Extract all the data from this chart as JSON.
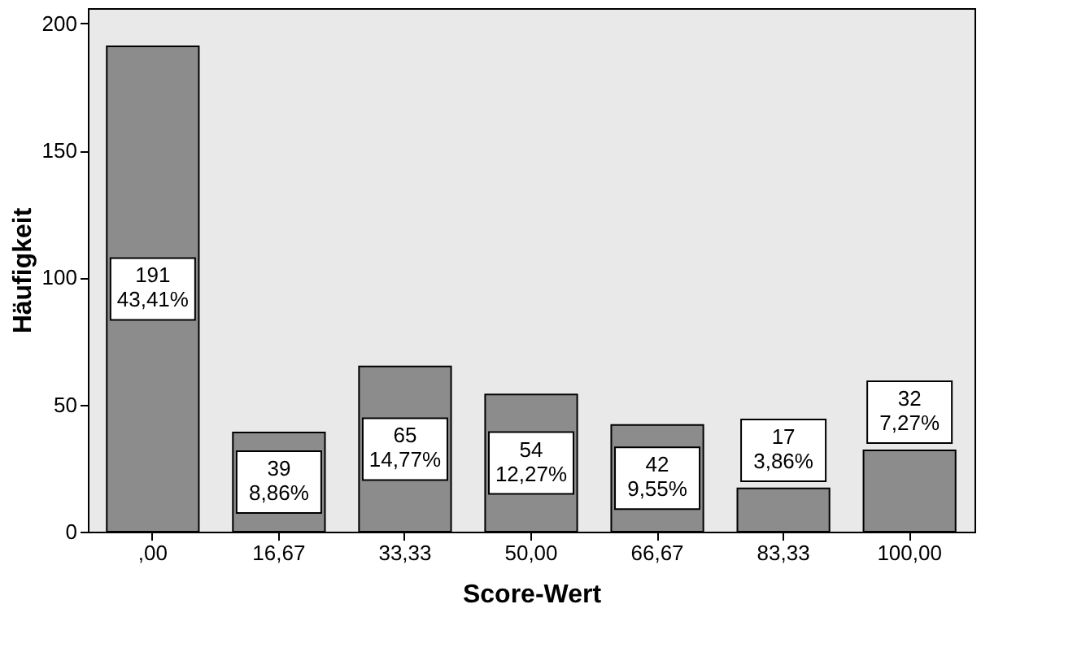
{
  "chart_data": {
    "type": "bar",
    "xlabel": "Score-Wert",
    "ylabel": "Häufigkeit",
    "categories": [
      ",00",
      "16,67",
      "33,33",
      "50,00",
      "66,67",
      "83,33",
      "100,00"
    ],
    "values": [
      191,
      39,
      65,
      54,
      42,
      17,
      32
    ],
    "value_labels": [
      "191\n43,41%",
      "39\n8,86%",
      "65\n14,77%",
      "54\n12,27%",
      "42\n9,55%",
      "17\n3,86%",
      "32\n7,27%"
    ],
    "color": "#8c8c8c",
    "ylim": [
      0,
      206
    ],
    "yticks": [
      0,
      50,
      100,
      150,
      200
    ],
    "grid": false
  }
}
